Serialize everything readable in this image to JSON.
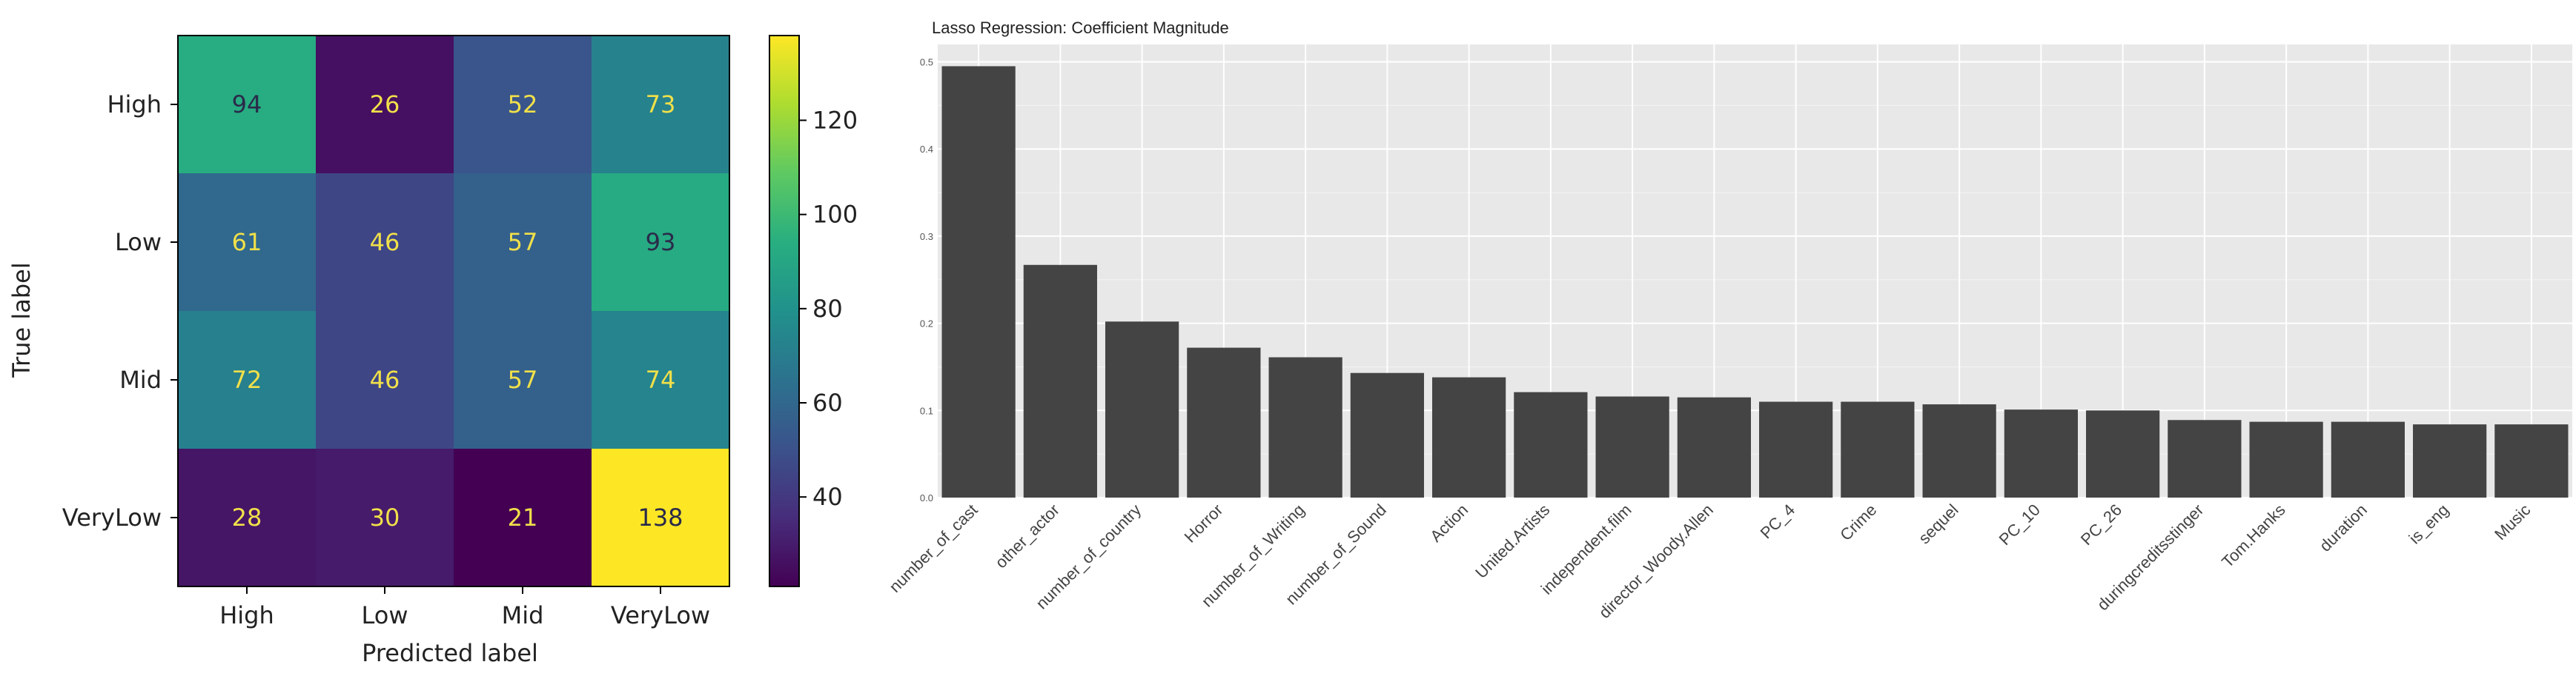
{
  "chart_data": [
    {
      "type": "heatmap",
      "xlabel": "Predicted label",
      "ylabel": "True label",
      "x_categories": [
        "High",
        "Low",
        "Mid",
        "VeryLow"
      ],
      "y_categories": [
        "High",
        "Low",
        "Mid",
        "VeryLow"
      ],
      "matrix": [
        [
          94,
          26,
          52,
          73
        ],
        [
          61,
          46,
          57,
          93
        ],
        [
          72,
          46,
          57,
          74
        ],
        [
          28,
          30,
          21,
          138
        ]
      ],
      "colormap": "viridis",
      "colorbar": {
        "min": 21,
        "max": 138,
        "ticks": [
          40,
          60,
          80,
          100,
          120
        ]
      },
      "value_text_colors": {
        "light": "#f1e04a",
        "dark": "#2a2a4a"
      }
    },
    {
      "type": "bar",
      "title": "Lasso Regression: Coefficient Magnitude",
      "categories": [
        "number_of_cast",
        "other_actor",
        "number_of_country",
        "Horror",
        "number_of_Writing",
        "number_of_Sound",
        "Action",
        "United.Artists",
        "independent.film",
        "director_Woody.Allen",
        "PC_4",
        "Crime",
        "sequel",
        "PC_10",
        "PC_26",
        "duringcreditsstinger",
        "Tom.Hanks",
        "duration",
        "is_eng",
        "Music"
      ],
      "values": [
        0.495,
        0.267,
        0.202,
        0.172,
        0.161,
        0.143,
        0.138,
        0.121,
        0.116,
        0.115,
        0.11,
        0.11,
        0.107,
        0.101,
        0.1,
        0.089,
        0.087,
        0.087,
        0.084,
        0.084
      ],
      "yticks": [
        "0.0",
        "0.1",
        "0.2",
        "0.3",
        "0.4",
        "0.5"
      ],
      "ylim": [
        0,
        0.52
      ],
      "grid": true,
      "colors": {
        "bar": "#444444",
        "panel": "#e8e8e8",
        "grid": "#ffffff"
      }
    }
  ]
}
